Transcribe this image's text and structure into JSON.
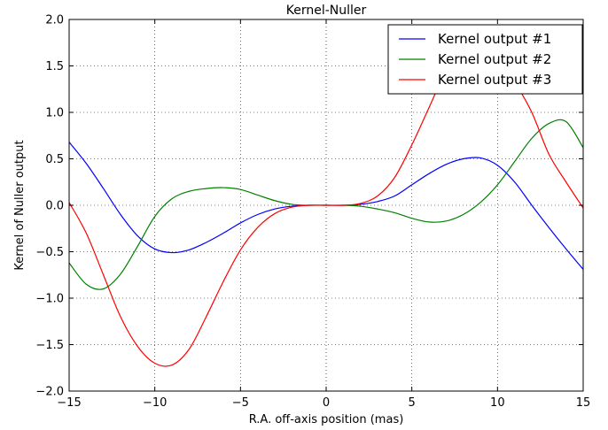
{
  "chart_data": {
    "type": "line",
    "title": "Kernel-Nuller",
    "xlabel": "R.A. off-axis position (mas)",
    "ylabel": "Kernel of Nuller output",
    "xlim": [
      -15,
      15
    ],
    "ylim": [
      -2.0,
      2.0
    ],
    "xticks": [
      -15,
      -10,
      -5,
      0,
      5,
      10,
      15
    ],
    "xtick_labels": [
      "−15",
      "−10",
      "−5",
      "0",
      "5",
      "10",
      "15"
    ],
    "yticks": [
      -2.0,
      -1.5,
      -1.0,
      -0.5,
      0.0,
      0.5,
      1.0,
      1.5,
      2.0
    ],
    "ytick_labels": [
      "−2.0",
      "−1.5",
      "−1.0",
      "−0.5",
      "0.0",
      "0.5",
      "1.0",
      "1.5",
      "2.0"
    ],
    "grid": true,
    "legend_position": "top-right",
    "x": [
      -15,
      -14,
      -13,
      -12,
      -11,
      -10,
      -9,
      -8,
      -7,
      -6,
      -5,
      -4,
      -3,
      -2,
      -1,
      0,
      1,
      2,
      3,
      4,
      5,
      6,
      7,
      8,
      9,
      10,
      11,
      12,
      13,
      14,
      15
    ],
    "series": [
      {
        "name": "Kernel output #1",
        "color": "#0000ff",
        "values": [
          0.68,
          0.45,
          0.18,
          -0.1,
          -0.33,
          -0.47,
          -0.51,
          -0.48,
          -0.4,
          -0.3,
          -0.19,
          -0.1,
          -0.04,
          -0.01,
          0.0,
          0.0,
          0.0,
          0.01,
          0.04,
          0.1,
          0.22,
          0.34,
          0.44,
          0.5,
          0.51,
          0.43,
          0.25,
          0.0,
          -0.24,
          -0.47,
          -0.69
        ]
      },
      {
        "name": "Kernel output #2",
        "color": "#008000",
        "values": [
          -0.62,
          -0.85,
          -0.9,
          -0.74,
          -0.44,
          -0.12,
          0.07,
          0.15,
          0.18,
          0.19,
          0.17,
          0.11,
          0.05,
          0.01,
          0.0,
          0.0,
          0.0,
          -0.01,
          -0.04,
          -0.08,
          -0.14,
          -0.18,
          -0.17,
          -0.1,
          0.03,
          0.22,
          0.47,
          0.72,
          0.88,
          0.9,
          0.62
        ]
      },
      {
        "name": "Kernel output #3",
        "color": "#ff0000",
        "values": [
          0.03,
          -0.3,
          -0.75,
          -1.2,
          -1.52,
          -1.7,
          -1.72,
          -1.55,
          -1.2,
          -0.82,
          -0.48,
          -0.24,
          -0.09,
          -0.02,
          0.0,
          0.0,
          0.0,
          0.02,
          0.1,
          0.3,
          0.65,
          1.05,
          1.45,
          1.7,
          1.78,
          1.6,
          1.33,
          1.0,
          0.55,
          0.25,
          -0.03
        ]
      }
    ]
  }
}
